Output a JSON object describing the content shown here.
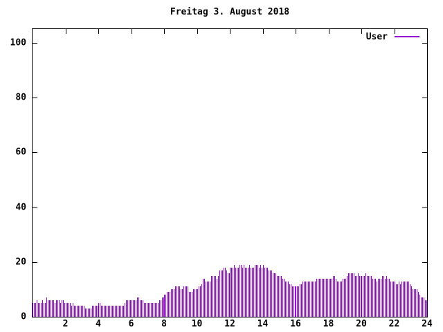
{
  "title": "Freitag 3. August 2018",
  "legend": {
    "label": "User"
  },
  "colors": {
    "series": "#9400d3",
    "axis": "#000000",
    "text": "#000000",
    "background": "#ffffff"
  },
  "y_axis": {
    "tick_labels": [
      "0",
      "20",
      "40",
      "60",
      "80",
      "100"
    ],
    "tick_values": [
      0,
      20,
      40,
      60,
      80,
      100
    ]
  },
  "x_axis": {
    "tick_labels": [
      "2",
      "4",
      "6",
      "8",
      "10",
      "12",
      "14",
      "16",
      "18",
      "20",
      "22",
      "24"
    ],
    "tick_values": [
      2,
      4,
      6,
      8,
      10,
      12,
      14,
      16,
      18,
      20,
      22,
      24
    ]
  },
  "chart_data": {
    "type": "bar",
    "style": "impulses",
    "title": "Freitag 3. August 2018",
    "xlabel": "",
    "ylabel": "",
    "xlim": [
      0,
      24
    ],
    "ylim": [
      0,
      105
    ],
    "x_unit": "hour_of_day",
    "sample_interval_minutes": 5,
    "grid": false,
    "legend_position": "top-right-inside",
    "series": [
      {
        "name": "User",
        "color": "#9400d3",
        "values": [
          5,
          5,
          5,
          6,
          5,
          5,
          5,
          6,
          5,
          5,
          7,
          6,
          6,
          6,
          6,
          6,
          5,
          6,
          6,
          6,
          5,
          6,
          6,
          5,
          5,
          5,
          5,
          5,
          4,
          5,
          4,
          4,
          4,
          4,
          4,
          4,
          4,
          4,
          3,
          3,
          3,
          3,
          3,
          4,
          4,
          4,
          4,
          4,
          5,
          5,
          4,
          4,
          4,
          4,
          4,
          4,
          4,
          4,
          4,
          4,
          4,
          4,
          4,
          4,
          4,
          4,
          4,
          5,
          6,
          6,
          6,
          6,
          6,
          6,
          6,
          6,
          7,
          7,
          6,
          6,
          6,
          5,
          5,
          5,
          5,
          5,
          5,
          5,
          5,
          5,
          5,
          5,
          6,
          6,
          7,
          7,
          8,
          8,
          9,
          9,
          9,
          10,
          10,
          10,
          11,
          11,
          11,
          11,
          10,
          10,
          11,
          11,
          11,
          11,
          9,
          9,
          9,
          10,
          10,
          10,
          10,
          11,
          11,
          12,
          14,
          14,
          13,
          13,
          13,
          13,
          15,
          15,
          15,
          15,
          14,
          15,
          17,
          17,
          17,
          18,
          18,
          17,
          16,
          16,
          18,
          18,
          18,
          19,
          18,
          18,
          18,
          19,
          19,
          18,
          19,
          18,
          18,
          18,
          19,
          18,
          18,
          18,
          19,
          19,
          19,
          18,
          19,
          18,
          19,
          18,
          18,
          18,
          17,
          17,
          17,
          16,
          16,
          16,
          15,
          15,
          15,
          15,
          14,
          14,
          13,
          13,
          13,
          12,
          12,
          11,
          11,
          11,
          11,
          11,
          11,
          12,
          12,
          13,
          13,
          13,
          13,
          13,
          13,
          13,
          13,
          13,
          13,
          14,
          14,
          14,
          14,
          14,
          14,
          14,
          14,
          14,
          14,
          14,
          14,
          15,
          15,
          14,
          13,
          13,
          13,
          13,
          14,
          14,
          14,
          15,
          16,
          16,
          16,
          16,
          16,
          15,
          15,
          16,
          15,
          15,
          15,
          15,
          15,
          16,
          15,
          15,
          15,
          15,
          14,
          14,
          14,
          13,
          14,
          14,
          14,
          15,
          15,
          14,
          15,
          14,
          14,
          13,
          13,
          13,
          13,
          12,
          12,
          13,
          12,
          13,
          13,
          13,
          13,
          13,
          13,
          12,
          11,
          10,
          10,
          10,
          10,
          9,
          8,
          7,
          7,
          7,
          6,
          6
        ]
      }
    ]
  }
}
